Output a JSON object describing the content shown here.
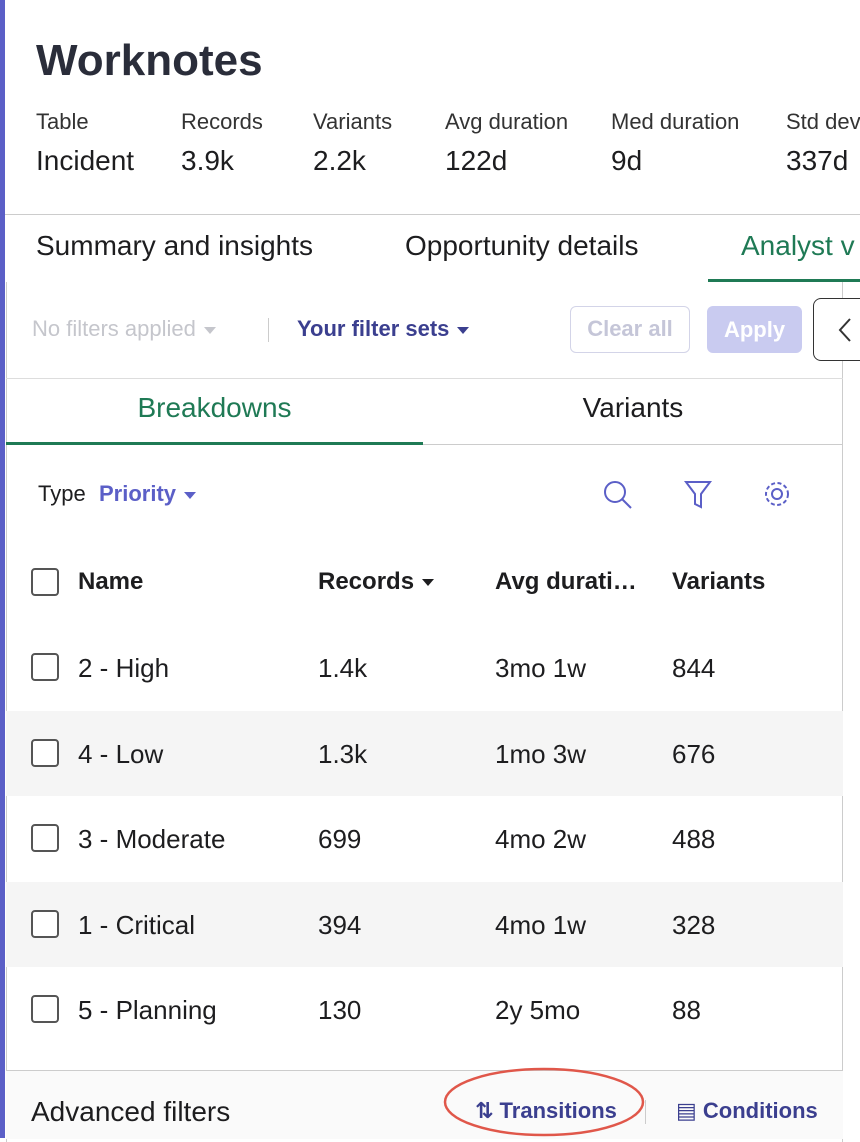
{
  "header": {
    "title": "Worknotes",
    "stats": [
      {
        "label": "Table",
        "value": "Incident"
      },
      {
        "label": "Records",
        "value": "3.9k"
      },
      {
        "label": "Variants",
        "value": "2.2k"
      },
      {
        "label": "Avg duration",
        "value": "122d"
      },
      {
        "label": "Med duration",
        "value": "9d"
      },
      {
        "label": "Std dev",
        "value": "337d"
      }
    ]
  },
  "tabs": [
    "Summary and insights",
    "Opportunity details",
    "Analyst v"
  ],
  "filter_bar": {
    "no_filters": "No filters applied",
    "filter_sets": "Your filter sets",
    "clear": "Clear all",
    "apply": "Apply"
  },
  "subtabs": [
    "Breakdowns",
    "Variants"
  ],
  "type_selector": {
    "label": "Type",
    "value": "Priority"
  },
  "table": {
    "columns": [
      "Name",
      "Records",
      "Avg durati…",
      "Variants"
    ],
    "rows": [
      [
        "2 - High",
        "1.4k",
        "3mo 1w",
        "844"
      ],
      [
        "4 - Low",
        "1.3k",
        "1mo 3w",
        "676"
      ],
      [
        "3 - Moderate",
        "699",
        "4mo 2w",
        "488"
      ],
      [
        "1 - Critical",
        "394",
        "4mo 1w",
        "328"
      ],
      [
        "5 - Planning",
        "130",
        "2y 5mo",
        "88"
      ]
    ]
  },
  "footer": {
    "title": "Advanced filters",
    "transitions": "Transitions",
    "conditions": "Conditions"
  }
}
